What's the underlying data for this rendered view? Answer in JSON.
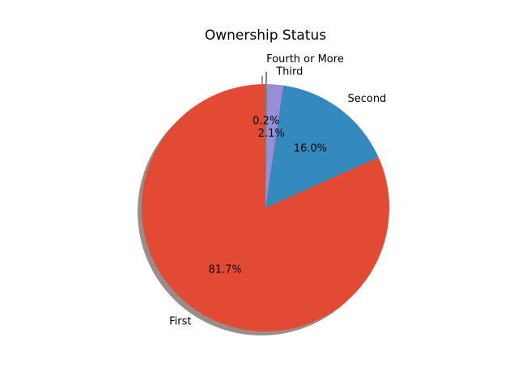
{
  "chart_data": {
    "type": "pie",
    "title": "Ownership Status",
    "start_angle_deg": 90,
    "counterclockwise": true,
    "shadow": true,
    "slices": [
      {
        "label": "First",
        "value": 81.7,
        "pct_label": "81.7%",
        "color": "#e24a33",
        "explode": 0
      },
      {
        "label": "Second",
        "value": 16.0,
        "pct_label": "16.0%",
        "color": "#348abd",
        "explode": 0
      },
      {
        "label": "Third",
        "value": 2.1,
        "pct_label": "2.1%",
        "color": "#988ed5",
        "explode": 0
      },
      {
        "label": "Fourth or More",
        "value": 0.2,
        "pct_label": "0.2%",
        "color": "#777777",
        "explode": 0.1
      }
    ]
  }
}
